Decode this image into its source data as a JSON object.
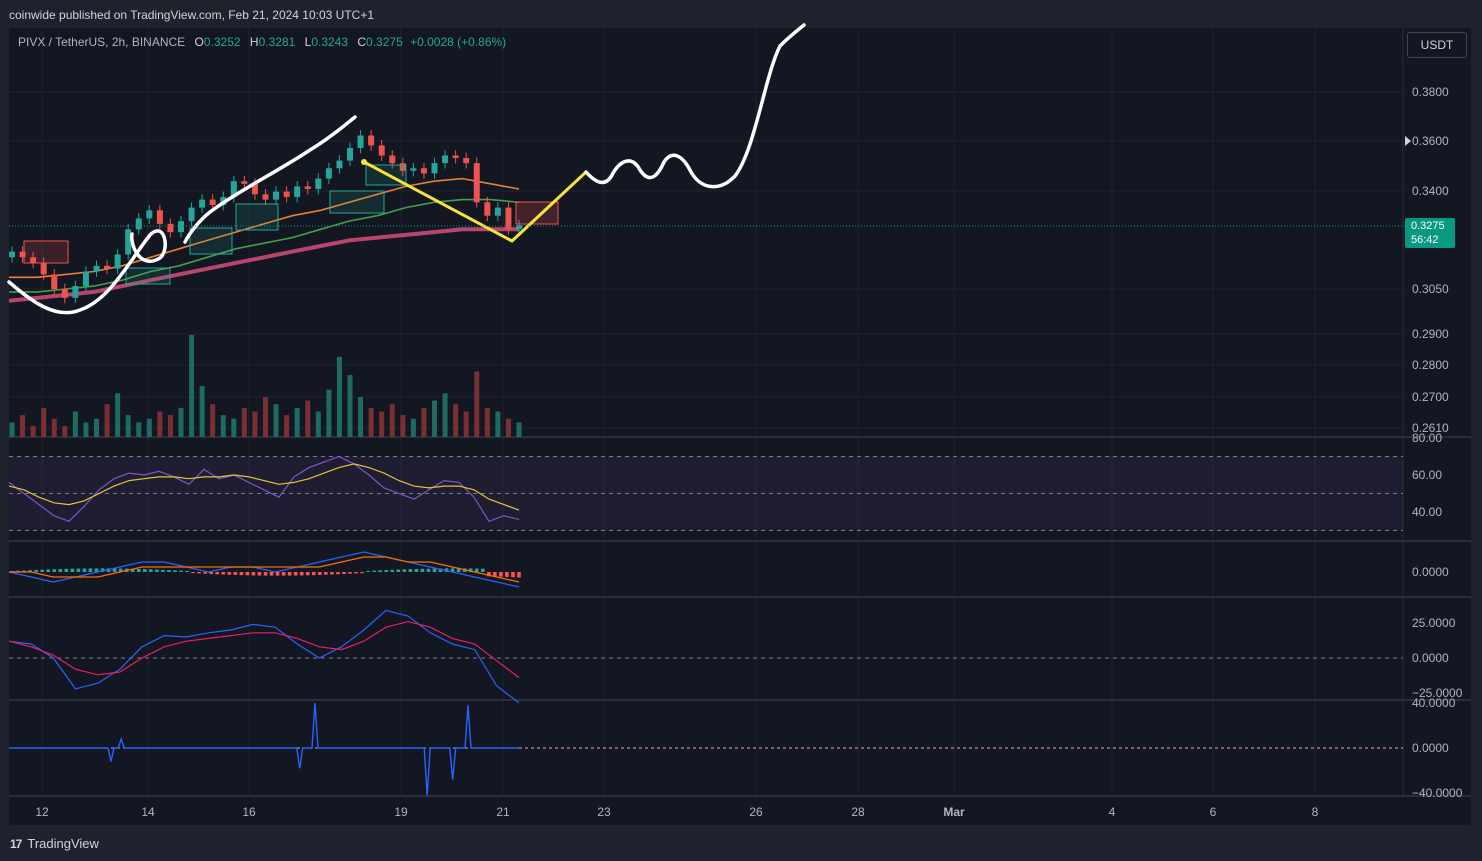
{
  "header": {
    "published": "coinwide published on TradingView.com, Feb 21, 2024 10:03 UTC+1"
  },
  "legend": {
    "symbol": "PIVX / TetherUS, 2h, BINANCE",
    "o_label": "O",
    "o": "0.3252",
    "h_label": "H",
    "h": "0.3281",
    "l_label": "L",
    "l": "0.3243",
    "c_label": "C",
    "c": "0.3275",
    "change": "+0.0028 (+0.86%)"
  },
  "currency_button": "USDT",
  "price_badge": {
    "price": "0.3275",
    "countdown": "56:42"
  },
  "brand": {
    "logo": "17",
    "name": "TradingView"
  },
  "colors": {
    "bull": "#26a69a",
    "bear": "#ef5350",
    "accent_badge": "#089981",
    "drawing_white": "#ffffff",
    "drawing_yellow": "#f7e33b"
  },
  "chart_data": [
    {
      "type": "candlestick",
      "panel": "price",
      "x_ticks": [
        "12",
        "14",
        "16",
        "19",
        "21",
        "23",
        "26",
        "28",
        "Mar",
        "4",
        "6",
        "8"
      ],
      "y_ticks": [
        "0.3800",
        "0.3600",
        "0.3400",
        "0.3050",
        "0.2900",
        "0.2800",
        "0.2700",
        "0.2610"
      ],
      "y_scale": "log",
      "last_price": 0.3275,
      "close_series_approx": [
        0.318,
        0.316,
        0.314,
        0.31,
        0.305,
        0.302,
        0.306,
        0.311,
        0.313,
        0.312,
        0.317,
        0.326,
        0.33,
        0.333,
        0.328,
        0.325,
        0.329,
        0.334,
        0.337,
        0.335,
        0.338,
        0.344,
        0.343,
        0.339,
        0.337,
        0.34,
        0.338,
        0.342,
        0.341,
        0.345,
        0.349,
        0.352,
        0.357,
        0.362,
        0.358,
        0.354,
        0.351,
        0.348,
        0.349,
        0.347,
        0.351,
        0.354,
        0.353,
        0.351,
        0.336,
        0.331,
        0.334,
        0.326,
        0.3275
      ],
      "moving_averages": [
        {
          "color": "#e8812f",
          "values": [
            0.309,
            0.309,
            0.31,
            0.311,
            0.313,
            0.316,
            0.319,
            0.322,
            0.325,
            0.328,
            0.331,
            0.333,
            0.336,
            0.339,
            0.342,
            0.344,
            0.345,
            0.343,
            0.341
          ]
        },
        {
          "color": "#43a047",
          "values": [
            0.304,
            0.304,
            0.305,
            0.306,
            0.308,
            0.311,
            0.313,
            0.316,
            0.319,
            0.321,
            0.323,
            0.326,
            0.329,
            0.331,
            0.334,
            0.336,
            0.337,
            0.337,
            0.336
          ]
        },
        {
          "color": "#b8456e",
          "values": [
            0.301,
            0.302,
            0.303,
            0.304,
            0.306,
            0.308,
            0.31,
            0.312,
            0.314,
            0.316,
            0.318,
            0.32,
            0.322,
            0.323,
            0.324,
            0.325,
            0.326,
            0.326,
            0.326
          ]
        }
      ],
      "volume_approx": [
        4,
        6,
        3,
        8,
        5,
        3,
        7,
        4,
        5,
        9,
        12,
        6,
        4,
        5,
        7,
        6,
        8,
        28,
        14,
        9,
        6,
        5,
        8,
        7,
        11,
        9,
        6,
        8,
        10,
        7,
        13,
        22,
        17,
        11,
        8,
        7,
        9,
        6,
        5,
        8,
        10,
        12,
        9,
        7,
        18,
        8,
        7,
        5,
        4
      ]
    },
    {
      "type": "line",
      "panel": "rsi",
      "y_ticks": [
        "80.00",
        "60.00",
        "40.00"
      ],
      "levels": [
        70,
        50,
        30
      ],
      "series": [
        {
          "color": "#7e57c2",
          "values": [
            56,
            50,
            44,
            38,
            35,
            43,
            52,
            58,
            61,
            60,
            62,
            59,
            55,
            63,
            58,
            60,
            56,
            52,
            48,
            59,
            64,
            67,
            70,
            66,
            60,
            53,
            50,
            47,
            52,
            57,
            56,
            48,
            35,
            38,
            36
          ]
        },
        {
          "color": "#e8c23b",
          "values": [
            54,
            52,
            48,
            45,
            44,
            46,
            50,
            54,
            57,
            58,
            59,
            59,
            58,
            59,
            59,
            60,
            59,
            57,
            55,
            56,
            58,
            61,
            64,
            66,
            64,
            61,
            57,
            54,
            53,
            54,
            54,
            52,
            47,
            44,
            41
          ]
        }
      ]
    },
    {
      "type": "line",
      "panel": "macd",
      "y_ticks": [
        "0.0000"
      ],
      "series": [
        {
          "color": "#2962ff",
          "values": [
            0,
            -1,
            -2,
            -1,
            0,
            1,
            2,
            2,
            1,
            0,
            1,
            1,
            0,
            1,
            2,
            3,
            4,
            3,
            2,
            1,
            0,
            -1,
            -2,
            -3
          ]
        },
        {
          "color": "#ff6d00",
          "values": [
            0,
            0,
            -1,
            -1,
            -1,
            0,
            1,
            1,
            1,
            1,
            1,
            1,
            1,
            1,
            1,
            2,
            3,
            3,
            2,
            2,
            1,
            0,
            -1,
            -2
          ]
        }
      ]
    },
    {
      "type": "line",
      "panel": "oscillator",
      "y_ticks": [
        "25.0000",
        "0.0000",
        "−25.0000"
      ],
      "series": [
        {
          "color": "#2962ff",
          "values": [
            12,
            10,
            0,
            -22,
            -18,
            -8,
            8,
            16,
            15,
            18,
            20,
            24,
            22,
            10,
            0,
            8,
            20,
            34,
            30,
            18,
            10,
            6,
            -20,
            -32
          ]
        },
        {
          "color": "#e91e63",
          "values": [
            12,
            8,
            2,
            -8,
            -12,
            -10,
            0,
            8,
            12,
            14,
            16,
            18,
            18,
            14,
            8,
            6,
            12,
            22,
            26,
            22,
            14,
            10,
            -2,
            -14
          ]
        }
      ]
    },
    {
      "type": "line",
      "panel": "spikes",
      "y_ticks": [
        "40.0000",
        "0.0000",
        "−40.0000"
      ],
      "series": [
        {
          "color": "#2962ff",
          "spikes": [
            {
              "x": 0.2,
              "y": -12
            },
            {
              "x": 0.22,
              "y": 8
            },
            {
              "x": 0.57,
              "y": -18
            },
            {
              "x": 0.6,
              "y": 40
            },
            {
              "x": 0.82,
              "y": -42
            },
            {
              "x": 0.87,
              "y": -28
            },
            {
              "x": 0.9,
              "y": 38
            }
          ]
        }
      ]
    }
  ]
}
